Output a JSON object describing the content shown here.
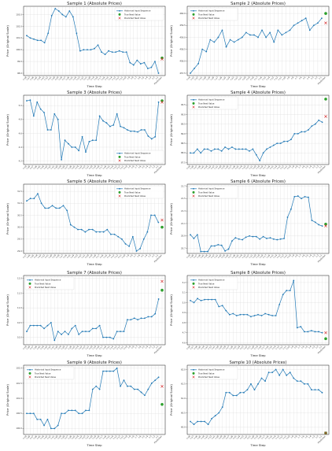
{
  "legend": {
    "historical": "Historical Input Sequence",
    "true_next": "True Next Value",
    "predicted_next": "Predicted Next Value"
  },
  "colors": {
    "historical": "#1f77b4",
    "true_next": "#2ca02c",
    "predicted_next": "#d62728"
  },
  "chart_data": [
    {
      "type": "line",
      "title": "Sample 1 (Absolute Prices)",
      "xlabel": "Time Step",
      "ylabel": "Price (Original Scale)",
      "ylim": [
        97.8,
        103.7
      ],
      "yticks": [
        98.0,
        99.0,
        100.0,
        101.0,
        102.0,
        103.0
      ],
      "legend_position": "upper right",
      "grid": true,
      "historical": [
        101.2,
        101.0,
        100.9,
        100.8,
        100.8,
        100.6,
        101.4,
        102.9,
        103.5,
        103.3,
        103.0,
        102.8,
        103.3,
        102.8,
        101.4,
        99.9,
        100.0,
        100.0,
        100.0,
        100.1,
        100.4,
        99.8,
        99.6,
        99.9,
        99.8,
        99.8,
        99.9,
        99.8,
        99.8,
        98.9,
        98.7,
        99.1,
        98.8,
        98.9,
        98.4,
        98.5,
        99.0,
        98.0
      ],
      "true_next": 99.3,
      "predicted_next": 99.2
    },
    {
      "type": "line",
      "title": "Sample 2 (Absolute Prices)",
      "xlabel": "Time Step",
      "ylabel": "Price (Original Scale)",
      "ylim": [
        457.4,
        460.3
      ],
      "yticks": [
        457.5,
        458.0,
        458.5,
        459.0,
        459.5,
        460.0
      ],
      "legend_position": "upper left",
      "grid": true,
      "historical": [
        457.5,
        457.7,
        457.9,
        458.5,
        458.4,
        458.9,
        458.8,
        459.0,
        459.3,
        458.6,
        458.9,
        458.8,
        458.9,
        459.0,
        459.2,
        459.1,
        459.1,
        459.0,
        459.3,
        459.0,
        459.2,
        458.8,
        459.3,
        459.1,
        459.2,
        459.3,
        459.5,
        459.6,
        459.7,
        459.8,
        459.3,
        459.5,
        459.6,
        459.8
      ],
      "true_next": 460.0,
      "predicted_next": 459.6
    },
    {
      "type": "line",
      "title": "Sample 3 (Absolute Prices)",
      "xlabel": "Time Step",
      "ylabel": "Price (Original Scale)",
      "ylim": [
        4.15,
        5.15
      ],
      "yticks": [
        4.2,
        4.4,
        4.6,
        4.8,
        5.0
      ],
      "legend_position": "lower right",
      "grid": true,
      "historical": [
        5.07,
        5.08,
        4.85,
        5.05,
        4.95,
        4.9,
        4.65,
        4.65,
        4.88,
        4.8,
        4.22,
        4.5,
        4.45,
        4.4,
        4.4,
        4.35,
        4.55,
        4.33,
        4.48,
        4.5,
        4.5,
        4.85,
        4.78,
        4.75,
        4.7,
        4.72,
        4.88,
        4.7,
        4.68,
        4.65,
        4.63,
        4.63,
        4.62,
        4.65,
        4.65,
        4.56,
        4.52,
        4.55,
        5.05
      ],
      "true_next": 5.07,
      "predicted_next": 5.05
    },
    {
      "type": "line",
      "title": "Sample 4 (Absolute Prices)",
      "xlabel": "Time Step",
      "ylabel": "Price (Original Scale)",
      "ylim": [
        87.4,
        91.0
      ],
      "yticks": [
        87.5,
        88.0,
        88.5,
        89.0,
        89.5,
        90.0,
        90.5
      ],
      "legend_position": "upper left",
      "grid": true,
      "historical": [
        88.0,
        88.0,
        88.2,
        88.0,
        88.2,
        88.2,
        88.1,
        88.2,
        88.2,
        88.1,
        88.3,
        88.2,
        88.3,
        88.2,
        88.2,
        88.2,
        88.2,
        88.1,
        88.2,
        87.9,
        87.6,
        88.0,
        88.2,
        88.3,
        88.4,
        88.5,
        88.5,
        88.6,
        88.6,
        88.7,
        89.0,
        89.0,
        89.1,
        89.1,
        89.2,
        89.4,
        89.5,
        89.7,
        89.6
      ],
      "true_next": 90.8,
      "predicted_next": 89.9
    },
    {
      "type": "line",
      "title": "Sample 5 (Absolute Prices)",
      "xlabel": "Time Step",
      "ylabel": "Price (Original Scale)",
      "ylim": [
        28.9,
        31.8
      ],
      "yticks": [
        29.0,
        29.5,
        30.0,
        30.5,
        31.0,
        31.5
      ],
      "legend_position": "upper right",
      "grid": true,
      "historical": [
        31.1,
        31.2,
        31.2,
        31.4,
        31.0,
        30.8,
        30.8,
        30.9,
        30.8,
        30.8,
        30.9,
        30.7,
        30.1,
        30.0,
        29.9,
        29.9,
        29.8,
        29.9,
        29.9,
        29.8,
        29.8,
        29.8,
        29.9,
        29.7,
        29.7,
        29.6,
        29.5,
        29.3,
        29.2,
        29.6,
        29.0,
        29.1,
        29.5,
        29.8,
        30.5,
        30.5,
        30.2
      ],
      "true_next": 30.0,
      "predicted_next": 30.3
    },
    {
      "type": "line",
      "title": "Sample 6 (Absolute Prices)",
      "xlabel": "Time Step",
      "ylabel": "Price (Original Scale)",
      "ylim": [
        20.62,
        21.73
      ],
      "yticks": [
        20.7,
        20.9,
        21.1,
        21.3,
        21.5,
        21.7
      ],
      "legend_position": "upper left",
      "grid": true,
      "historical": [
        20.92,
        20.86,
        20.92,
        20.65,
        20.65,
        20.65,
        20.74,
        20.74,
        20.76,
        20.75,
        20.66,
        20.69,
        20.82,
        20.87,
        20.85,
        20.84,
        20.88,
        20.9,
        20.89,
        20.89,
        20.85,
        20.89,
        20.86,
        20.87,
        20.85,
        20.84,
        20.85,
        20.86,
        21.2,
        21.33,
        21.53,
        21.54,
        21.5,
        21.53,
        21.52,
        21.15,
        21.12,
        21.08,
        21.06
      ],
      "true_next": 21.09,
      "predicted_next": 21.06
    },
    {
      "type": "line",
      "title": "Sample 7 (Absolute Prices)",
      "xlabel": "Time Step",
      "ylabel": "Price (Original Scale)",
      "ylim": [
        9.75,
        12.1
      ],
      "yticks": [
        10.0,
        10.5,
        11.0,
        11.5,
        12.0
      ],
      "legend_position": "upper left",
      "grid": true,
      "historical": [
        10.2,
        10.4,
        10.4,
        10.4,
        10.4,
        10.3,
        10.4,
        10.5,
        9.9,
        10.2,
        10.1,
        10.2,
        10.1,
        10.3,
        10.4,
        10.1,
        10.2,
        10.2,
        10.2,
        10.3,
        10.3,
        10.4,
        10.0,
        10.0,
        10.0,
        9.95,
        10.2,
        10.2,
        10.2,
        10.6,
        10.6,
        10.65,
        10.6,
        10.65,
        10.65,
        10.7,
        10.7,
        10.8,
        11.3
      ],
      "true_next": 11.6,
      "predicted_next": 11.9
    },
    {
      "type": "line",
      "title": "Sample 8 (Absolute Prices)",
      "xlabel": "Time Step",
      "ylabel": "Price (Original Scale)",
      "ylim": [
        4.58,
        5.27
      ],
      "yticks": [
        4.6,
        4.7,
        4.8,
        4.9,
        5.0,
        5.1,
        5.2
      ],
      "legend_position": "upper left",
      "grid": true,
      "historical": [
        5.02,
        5.0,
        5.04,
        5.02,
        5.03,
        5.03,
        5.03,
        5.03,
        4.96,
        4.97,
        4.92,
        4.88,
        4.89,
        4.87,
        4.88,
        4.88,
        4.88,
        4.86,
        4.87,
        4.88,
        4.87,
        4.89,
        4.88,
        4.87,
        4.87,
        4.98,
        5.08,
        5.12,
        5.12,
        5.22,
        4.75,
        4.76,
        4.71,
        4.71,
        4.72,
        4.71,
        4.71,
        4.7
      ],
      "true_next": 4.64,
      "predicted_next": 4.7
    },
    {
      "type": "line",
      "title": "Sample 9 (Absolute Prices)",
      "xlabel": "Time Step",
      "ylabel": "Price (Original Scale)",
      "ylim": [
        99.8,
        102.1
      ],
      "yticks": [
        100.0,
        100.5,
        101.0,
        101.5,
        102.0
      ],
      "legend_position": "upper left",
      "grid": true,
      "historical": [
        100.5,
        100.5,
        100.5,
        100.3,
        100.3,
        100.1,
        100.3,
        100.0,
        100.0,
        100.1,
        100.5,
        100.5,
        100.6,
        100.6,
        100.6,
        100.5,
        100.5,
        100.6,
        100.6,
        101.3,
        101.4,
        101.3,
        101.9,
        101.9,
        101.9,
        101.9,
        102.0,
        101.4,
        101.6,
        101.4,
        101.4,
        101.3,
        101.3,
        101.2,
        101.1,
        101.3,
        101.5,
        101.6,
        101.7
      ],
      "true_next": 100.8,
      "predicted_next": 101.4
    },
    {
      "type": "line",
      "title": "Sample 10 (Absolute Prices)",
      "xlabel": "Time Step",
      "ylabel": "Price (Original Scale)",
      "ylim": [
        59.75,
        62.15
      ],
      "yticks": [
        60.0,
        60.5,
        61.0,
        61.5,
        62.0
      ],
      "legend_position": "upper left",
      "grid": true,
      "historical": [
        60.2,
        60.1,
        60.2,
        60.2,
        60.2,
        60.1,
        60.3,
        60.4,
        60.5,
        60.7,
        61.2,
        61.2,
        61.1,
        61.1,
        61.2,
        61.2,
        61.3,
        61.5,
        61.3,
        61.5,
        61.7,
        61.6,
        61.9,
        61.9,
        62.0,
        61.8,
        62.0,
        61.8,
        61.9,
        61.7,
        61.6,
        61.6,
        61.5,
        61.5,
        61.3,
        61.3,
        61.3,
        61.2
      ],
      "true_next": 59.8,
      "predicted_next": 59.8
    }
  ]
}
